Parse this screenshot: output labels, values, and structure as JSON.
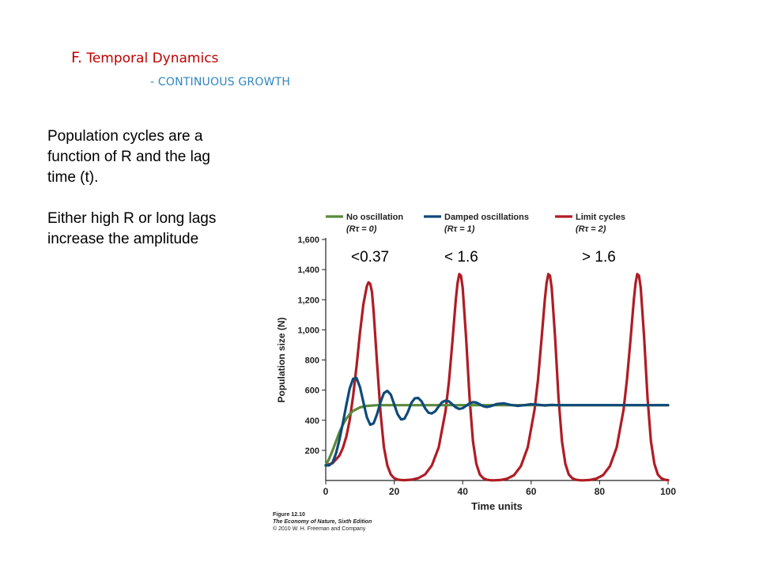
{
  "slide": {
    "title_letter": "F.",
    "title_rest": "Temporal Dynamics",
    "subtitle": "- CONTINUOUS GROWTH",
    "paragraphs": [
      "Population cycles are a function of R and the lag time (t).",
      "Either high R or long lags increase the amplitude"
    ]
  },
  "figure_credit": {
    "figure": "Figure 12.10",
    "book": "The Economy of Nature, Sixth Edition",
    "copyright": "© 2010 W. H. Freeman and Company"
  },
  "colors": {
    "green": "#5a8a3a",
    "blue": "#0f4a7a",
    "red": "#b01c24",
    "axis": "#222222"
  },
  "chart_data": {
    "type": "line",
    "xlabel": "Time units",
    "ylabel": "Population size (N)",
    "xlim": [
      0,
      100
    ],
    "ylim": [
      0,
      1600
    ],
    "x_ticks": [
      "0",
      "20",
      "40",
      "60",
      "80",
      "100"
    ],
    "y_ticks": [
      "200",
      "400",
      "600",
      "800",
      "1,000",
      "1,200",
      "1,400",
      "1,600"
    ],
    "annotations": [
      "<0.37",
      "< 1.6",
      "> 1.6"
    ],
    "legend": [
      {
        "name": "No oscillation",
        "sub": "(Rτ = 0)",
        "color": "#5a8a3a"
      },
      {
        "name": "Damped oscillations",
        "sub": "(Rτ = 1)",
        "color": "#0f4a7a"
      },
      {
        "name": "Limit cycles",
        "sub": "(Rτ = 2)",
        "color": "#b01c24"
      }
    ],
    "series": [
      {
        "key": "no_oscillation",
        "color": "#5a8a3a",
        "x": [
          0,
          1,
          2,
          3,
          4,
          5,
          6,
          7,
          8,
          10,
          12,
          15,
          20,
          30,
          40,
          50,
          60,
          70,
          80,
          90,
          100
        ],
        "y": [
          100,
          145,
          200,
          260,
          320,
          370,
          410,
          440,
          462,
          485,
          495,
          500,
          500,
          500,
          500,
          500,
          500,
          500,
          500,
          500,
          500
        ]
      },
      {
        "key": "damped_oscillations",
        "color": "#0f4a7a",
        "x": [
          0,
          1,
          2,
          3,
          4,
          5,
          6,
          7,
          8,
          9,
          10,
          11,
          12,
          13,
          14,
          15,
          16,
          17,
          18,
          19,
          20,
          21,
          22,
          23,
          24,
          25,
          26,
          27,
          28,
          29,
          30,
          31,
          32,
          33,
          34,
          35,
          36,
          37,
          38,
          39,
          40,
          41,
          42,
          43,
          44,
          45,
          46,
          47,
          48,
          50,
          52,
          54,
          56,
          58,
          60,
          62,
          64,
          66,
          68,
          70,
          75,
          80,
          90,
          100
        ],
        "y": [
          100,
          100,
          120,
          180,
          270,
          380,
          500,
          610,
          675,
          680,
          620,
          520,
          420,
          370,
          380,
          440,
          520,
          580,
          595,
          570,
          505,
          440,
          405,
          410,
          455,
          515,
          545,
          548,
          525,
          480,
          450,
          445,
          460,
          492,
          520,
          530,
          525,
          505,
          485,
          475,
          480,
          495,
          512,
          520,
          517,
          505,
          493,
          488,
          492,
          508,
          512,
          502,
          495,
          500,
          506,
          503,
          498,
          502,
          500,
          500,
          500,
          500,
          500,
          500
        ]
      },
      {
        "key": "limit_cycles",
        "color": "#b01c24",
        "x": [
          0,
          2,
          4,
          5,
          6,
          7,
          8,
          9,
          10,
          11,
          12,
          12.5,
          13,
          13.5,
          14,
          15,
          16,
          17,
          18,
          19,
          20,
          21,
          22,
          23,
          25,
          27,
          29,
          31,
          33,
          35,
          36,
          37,
          38,
          38.5,
          39,
          39.5,
          40,
          41,
          42,
          43,
          44,
          45,
          46,
          47,
          48,
          49,
          51,
          53,
          55,
          57,
          59,
          61,
          62,
          63,
          64,
          64.5,
          65,
          65.5,
          66,
          67,
          68,
          69,
          70,
          71,
          72,
          73,
          74,
          75,
          77,
          79,
          81,
          83,
          85,
          87,
          88,
          89,
          90,
          90.5,
          91,
          91.5,
          92,
          93,
          94,
          95,
          96,
          97,
          98,
          99,
          100
        ],
        "y": [
          100,
          115,
          165,
          215,
          290,
          400,
          560,
          760,
          980,
          1170,
          1290,
          1315,
          1305,
          1250,
          1120,
          780,
          450,
          220,
          100,
          40,
          15,
          6,
          3,
          2,
          5,
          15,
          40,
          100,
          220,
          460,
          660,
          920,
          1200,
          1310,
          1370,
          1360,
          1280,
          950,
          550,
          260,
          110,
          40,
          15,
          5,
          2,
          1,
          3,
          12,
          35,
          95,
          220,
          470,
          670,
          930,
          1200,
          1310,
          1370,
          1360,
          1280,
          950,
          550,
          260,
          110,
          40,
          15,
          5,
          2,
          1,
          3,
          12,
          35,
          95,
          220,
          470,
          670,
          930,
          1200,
          1310,
          1370,
          1360,
          1280,
          950,
          550,
          260,
          110,
          40,
          15,
          5,
          2
        ]
      }
    ]
  }
}
